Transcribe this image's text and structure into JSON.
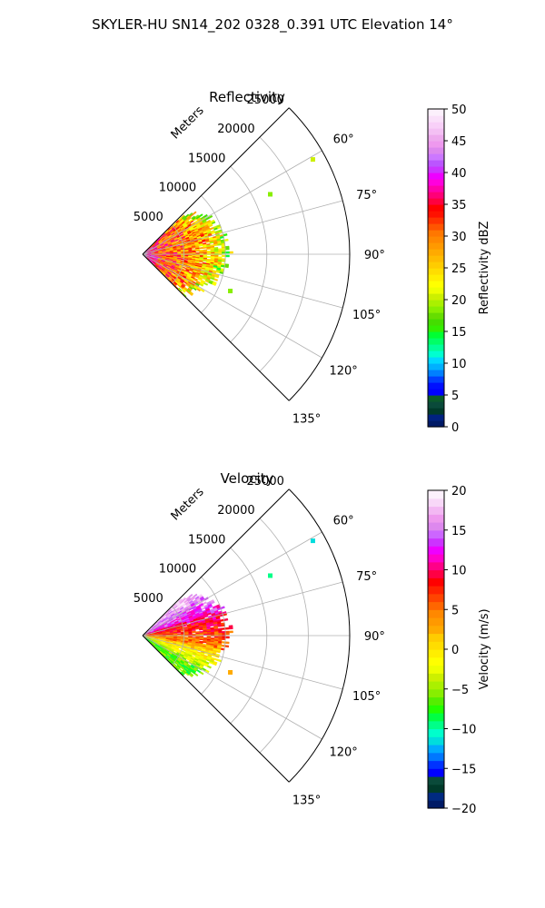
{
  "figure_title": "SKYLER-HU  SN14_202  0328_0.391 UTC Elevation 14°",
  "chart_data": [
    {
      "type": "heatmap",
      "projection": "polar-sector",
      "title": "Reflectivity",
      "radial_label": "Meters",
      "radial_ticks": [
        5000,
        10000,
        15000,
        20000,
        25000
      ],
      "radial_tick_labels": [
        "5000",
        "10000",
        "15000",
        "20000",
        "25000"
      ],
      "azimuth_range_deg": [
        45,
        135
      ],
      "azimuth_ticks": [
        60,
        75,
        90,
        105,
        120,
        135
      ],
      "azimuth_tick_labels": [
        "60°",
        "75°",
        "90°",
        "105°",
        "120°",
        "135°"
      ],
      "rlim": [
        0,
        25000
      ],
      "grid": true,
      "colorbar": {
        "label": "Reflectivity dBZ",
        "vmin": 0,
        "vmax": 50,
        "ticks": [
          0,
          5,
          10,
          15,
          20,
          25,
          30,
          35,
          40,
          45,
          50
        ],
        "tick_labels": [
          "0",
          "5",
          "10",
          "15",
          "20",
          "25",
          "30",
          "35",
          "40",
          "45",
          "50"
        ],
        "colors": [
          "#001a66",
          "#002280",
          "#003a2a",
          "#0a4a3a",
          "#0b5a2a",
          "#0000ff",
          "#0010ff",
          "#0040ff",
          "#0080ff",
          "#00b0ff",
          "#00d8ff",
          "#00ffd0",
          "#00ff99",
          "#00ff66",
          "#00ff33",
          "#33ee00",
          "#44dd00",
          "#66dd00",
          "#88ee00",
          "#aaf000",
          "#ccf000",
          "#eeff00",
          "#ffff00",
          "#ffee00",
          "#ffdd00",
          "#ffcc00",
          "#ffbb00",
          "#ffaa00",
          "#ff9900",
          "#ff8800",
          "#ff7700",
          "#ff5500",
          "#ff3300",
          "#ff1100",
          "#ff0000",
          "#ff0040",
          "#ff0077",
          "#ff00aa",
          "#ff00dd",
          "#ee00ff",
          "#cc33ff",
          "#bb55ff",
          "#cc77ff",
          "#dd88ee",
          "#ee99ee",
          "#eeaaee",
          "#f4c0f4",
          "#f8d0f8",
          "#fae0fa",
          "#fcf0fc"
        ]
      },
      "echo_summary": {
        "azimuth_extent_deg": [
          45,
          135
        ],
        "range_extent_m": [
          0,
          10500
        ],
        "dominant_values": "mostly 20-35 dBZ, peaks near 40 dBZ close to the radar",
        "isolated_cells": [
          {
            "azimuth_deg": 65,
            "range_m": 17000,
            "value": 18
          },
          {
            "azimuth_deg": 61,
            "range_m": 23500,
            "value": 20
          },
          {
            "azimuth_deg": 113,
            "range_m": 11500,
            "value": 18
          }
        ]
      }
    },
    {
      "type": "heatmap",
      "projection": "polar-sector",
      "title": "Velocity",
      "radial_label": "Meters",
      "radial_ticks": [
        5000,
        10000,
        15000,
        20000,
        25000
      ],
      "radial_tick_labels": [
        "5000",
        "10000",
        "15000",
        "20000",
        "25000"
      ],
      "azimuth_range_deg": [
        45,
        135
      ],
      "azimuth_ticks": [
        60,
        75,
        90,
        105,
        120,
        135
      ],
      "azimuth_tick_labels": [
        "60°",
        "75°",
        "90°",
        "105°",
        "120°",
        "135°"
      ],
      "rlim": [
        0,
        25000
      ],
      "grid": true,
      "colorbar": {
        "label": "Velocity (m/s)",
        "vmin": -20,
        "vmax": 20,
        "ticks": [
          -20,
          -15,
          -10,
          -5,
          0,
          5,
          10,
          15,
          20
        ],
        "tick_labels": [
          "−20",
          "−15",
          "−10",
          "−5",
          "0",
          "5",
          "10",
          "15",
          "20"
        ],
        "colors": [
          "#001a66",
          "#002a80",
          "#003a2a",
          "#0a4a3a",
          "#0000ff",
          "#0033ff",
          "#0077ff",
          "#00aaff",
          "#00dddd",
          "#00ffcc",
          "#00ff88",
          "#00ff44",
          "#22ff00",
          "#55ee00",
          "#88ee00",
          "#aaf000",
          "#ccf000",
          "#eeff00",
          "#ffff00",
          "#ffee00",
          "#ffdd00",
          "#ffcc00",
          "#ffaa00",
          "#ff9900",
          "#ff8800",
          "#ff6600",
          "#ff4400",
          "#ff2200",
          "#ff0000",
          "#ff0044",
          "#ff0088",
          "#ff00cc",
          "#ee00ff",
          "#cc33ff",
          "#cc66ff",
          "#dd88ee",
          "#ee99ee",
          "#f3b8f3",
          "#f8d8f8",
          "#fcf0fc"
        ]
      },
      "echo_summary": {
        "azimuth_extent_deg": [
          45,
          135
        ],
        "range_extent_m": [
          0,
          10500
        ],
        "north_sector_values": "10 to 20 m/s (pink/magenta)",
        "center_values": "0 to 10 m/s (yellow/orange)",
        "south_sector_values": "-5 to -10 m/s (green)",
        "isolated_cells": [
          {
            "azimuth_deg": 65,
            "range_m": 17000,
            "value": -10
          },
          {
            "azimuth_deg": 61,
            "range_m": 23500,
            "value": -12
          },
          {
            "azimuth_deg": 113,
            "range_m": 11500,
            "value": 2
          }
        ]
      }
    }
  ]
}
